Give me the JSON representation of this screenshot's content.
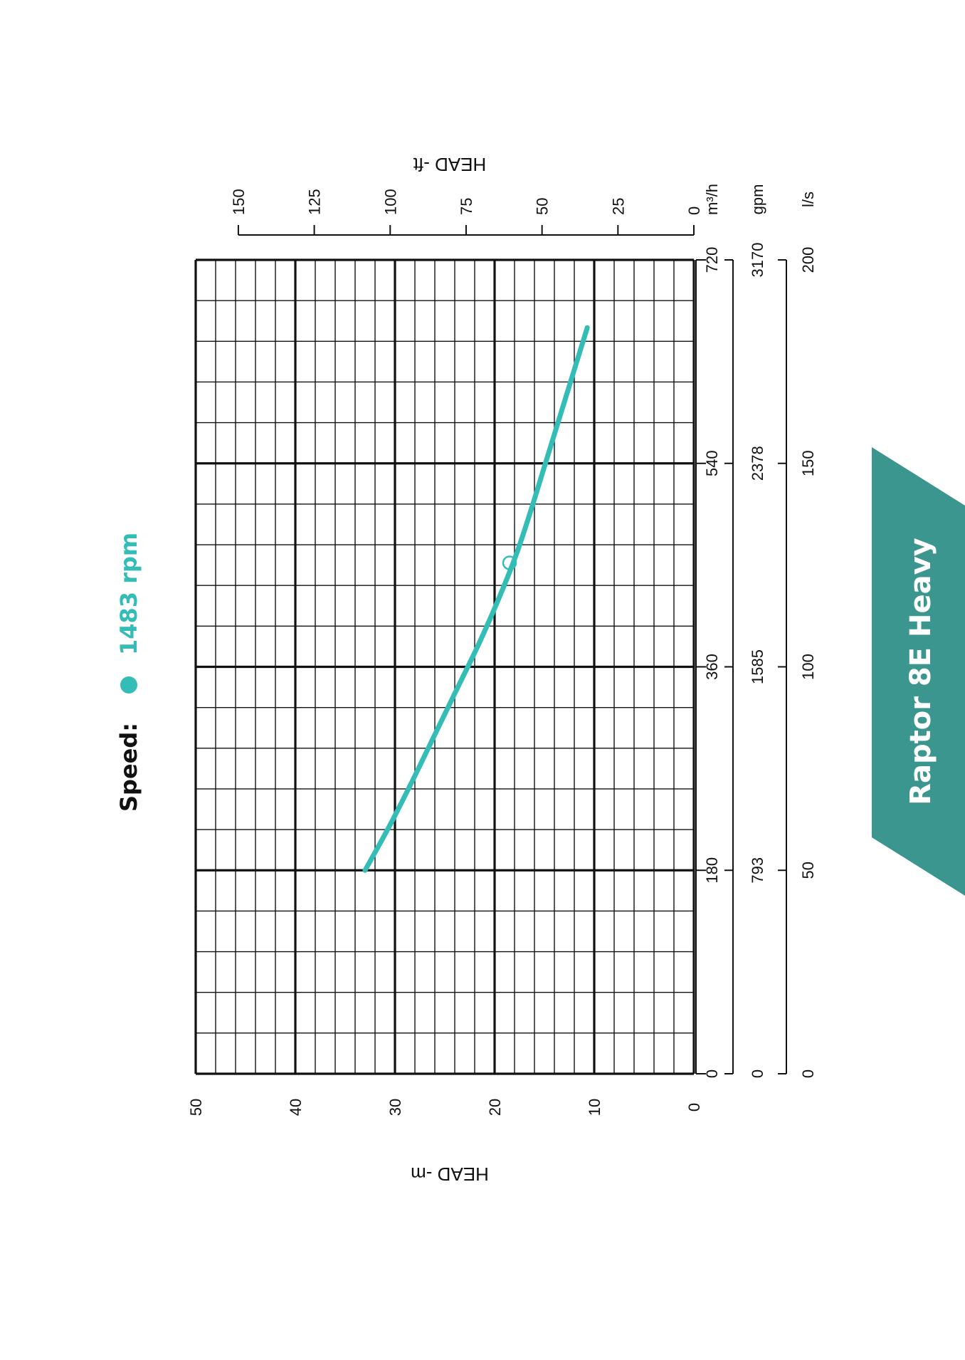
{
  "speed": {
    "label": "Speed:",
    "value": "1483 rpm"
  },
  "banner": {
    "label": "Raptor 8E Heavy",
    "color": "#3a968f"
  },
  "colors": {
    "curve": "#33bdb6",
    "grid": "#111111"
  },
  "chart_data": {
    "type": "line",
    "orientation": "rotated 90° counter-clockwise",
    "title": "",
    "xlabel": "",
    "ylabel": "HEAD -m",
    "ylabel_secondary": "HEAD -ft",
    "xlim": [
      0,
      720
    ],
    "ylim": [
      0,
      50
    ],
    "ylim_secondary": [
      0,
      150
    ],
    "grid": true,
    "x_axes": [
      {
        "unit": "m³/h",
        "ticks": [
          "0",
          "180",
          "360",
          "540",
          "720"
        ]
      },
      {
        "unit": "gpm",
        "ticks": [
          "0",
          "793",
          "1585",
          "2378",
          "3170"
        ]
      },
      {
        "unit": "l/s",
        "ticks": [
          "0",
          "50",
          "100",
          "150",
          "200"
        ]
      }
    ],
    "y_ticks": [
      "0",
      "10",
      "20",
      "30",
      "40",
      "50"
    ],
    "y_secondary_ticks": [
      "0",
      "25",
      "50",
      "75",
      "100",
      "125",
      "150"
    ],
    "series": [
      {
        "name": "1483 rpm",
        "x": [
          180,
          220,
          260,
          300,
          340,
          380,
          420,
          460,
          500,
          540,
          580,
          620,
          660
        ],
        "y": [
          33,
          30.5,
          28.2,
          26,
          23.8,
          21.6,
          19.6,
          17.8,
          16.3,
          14.9,
          13.5,
          12.1,
          10.7
        ]
      }
    ],
    "duty_point": {
      "x": 452,
      "y": 18.5
    }
  }
}
